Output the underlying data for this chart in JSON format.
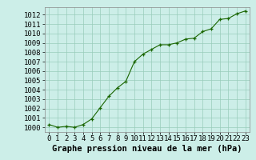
{
  "x": [
    0,
    1,
    2,
    3,
    4,
    5,
    6,
    7,
    8,
    9,
    10,
    11,
    12,
    13,
    14,
    15,
    16,
    17,
    18,
    19,
    20,
    21,
    22,
    23
  ],
  "y": [
    1000.3,
    1000.0,
    1000.1,
    1000.0,
    1000.3,
    1000.9,
    1002.1,
    1003.3,
    1004.2,
    1004.9,
    1007.0,
    1007.8,
    1008.3,
    1008.8,
    1008.8,
    1009.0,
    1009.4,
    1009.5,
    1010.2,
    1010.5,
    1011.5,
    1011.6,
    1012.1,
    1012.4
  ],
  "xlim": [
    -0.5,
    23.5
  ],
  "ylim": [
    999.5,
    1012.8
  ],
  "yticks": [
    1000,
    1001,
    1002,
    1003,
    1004,
    1005,
    1006,
    1007,
    1008,
    1009,
    1010,
    1011,
    1012
  ],
  "xticks": [
    0,
    1,
    2,
    3,
    4,
    5,
    6,
    7,
    8,
    9,
    10,
    11,
    12,
    13,
    14,
    15,
    16,
    17,
    18,
    19,
    20,
    21,
    22,
    23
  ],
  "line_color": "#1a6600",
  "marker_color": "#1a6600",
  "bg_color": "#cceee8",
  "grid_color": "#99ccbb",
  "xlabel": "Graphe pression niveau de la mer (hPa)",
  "xlabel_fontsize": 7.5,
  "tick_fontsize": 6.5,
  "figure_bg": "#cceee8"
}
